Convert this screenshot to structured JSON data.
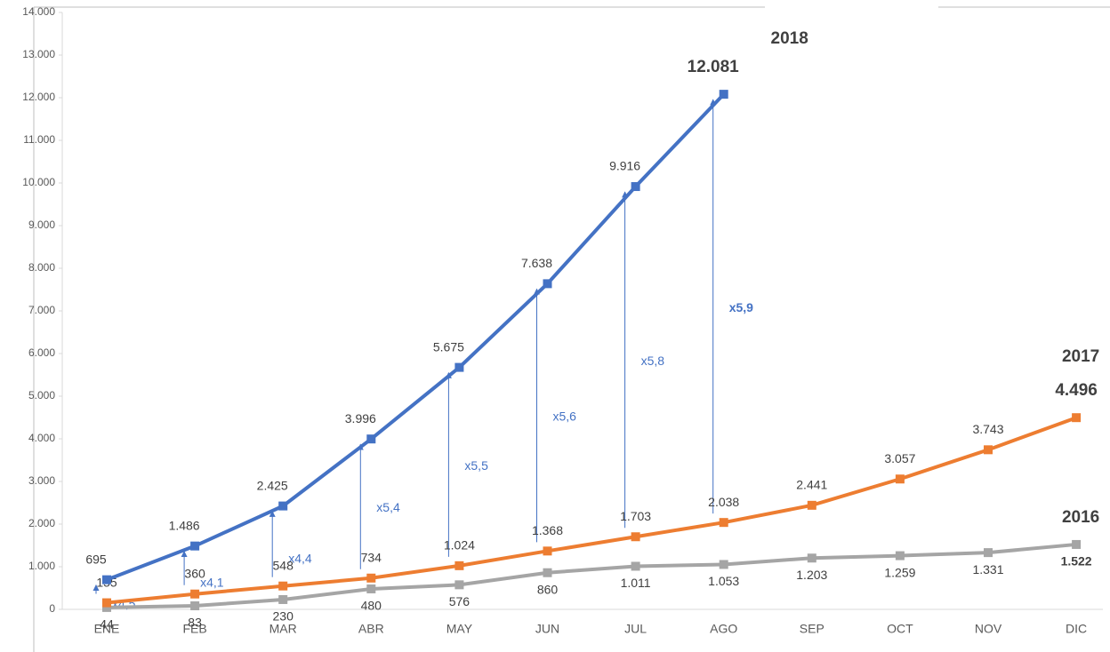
{
  "chart_data": {
    "type": "line",
    "categories": [
      "ENE",
      "FEB",
      "MAR",
      "ABR",
      "MAY",
      "JUN",
      "JUL",
      "AGO",
      "SEP",
      "OCT",
      "NOV",
      "DIC"
    ],
    "series": [
      {
        "name": "2018",
        "color": "#4472c4",
        "values": [
          695,
          1486,
          2425,
          3996,
          5675,
          7638,
          9916,
          12081,
          null,
          null,
          null,
          null
        ],
        "value_labels": [
          "695",
          "1.486",
          "2.425",
          "3.996",
          "5.675",
          "7.638",
          "9.916",
          "12.081",
          null,
          null,
          null,
          null
        ]
      },
      {
        "name": "2017",
        "color": "#ed7d31",
        "values": [
          155,
          360,
          548,
          734,
          1024,
          1368,
          1703,
          2038,
          2441,
          3057,
          3743,
          4496
        ],
        "value_labels": [
          "155",
          "360",
          "548",
          "734",
          "1.024",
          "1.368",
          "1.703",
          "2.038",
          "2.441",
          "3.057",
          "3.743",
          "4.496"
        ]
      },
      {
        "name": "2016",
        "color": "#a5a5a5",
        "values": [
          44,
          83,
          230,
          480,
          576,
          860,
          1011,
          1053,
          1203,
          1259,
          1331,
          1522
        ],
        "value_labels": [
          "44",
          "83",
          "230",
          "480",
          "576",
          "860",
          "1.011",
          "1.053",
          "1.203",
          "1.259",
          "1.331",
          "1.522"
        ]
      }
    ],
    "ratio_labels": [
      "x4,5",
      "x4,1",
      "x4,4",
      "x5,4",
      "x5,5",
      "x5,6",
      "x5,8",
      "x5,9"
    ],
    "ylim": [
      0,
      14000
    ],
    "yticks": [
      0,
      {
        "value": 1000,
        "label": "1.000"
      },
      {
        "value": 2000,
        "label": "2.000"
      },
      {
        "value": 3000,
        "label": "3.000"
      },
      {
        "value": 4000,
        "label": "4.000"
      },
      {
        "value": 5000,
        "label": "5.000"
      },
      {
        "value": 6000,
        "label": "6.000"
      },
      {
        "value": 7000,
        "label": "7.000"
      },
      {
        "value": 8000,
        "label": "8.000"
      },
      {
        "value": 9000,
        "label": "9.000"
      },
      {
        "value": 10000,
        "label": "10.000"
      },
      {
        "value": 11000,
        "label": "11.000"
      },
      {
        "value": 12000,
        "label": "12.000"
      },
      {
        "value": 13000,
        "label": "13.000"
      },
      {
        "value": 14000,
        "label": "14.000"
      }
    ],
    "grid": false
  }
}
